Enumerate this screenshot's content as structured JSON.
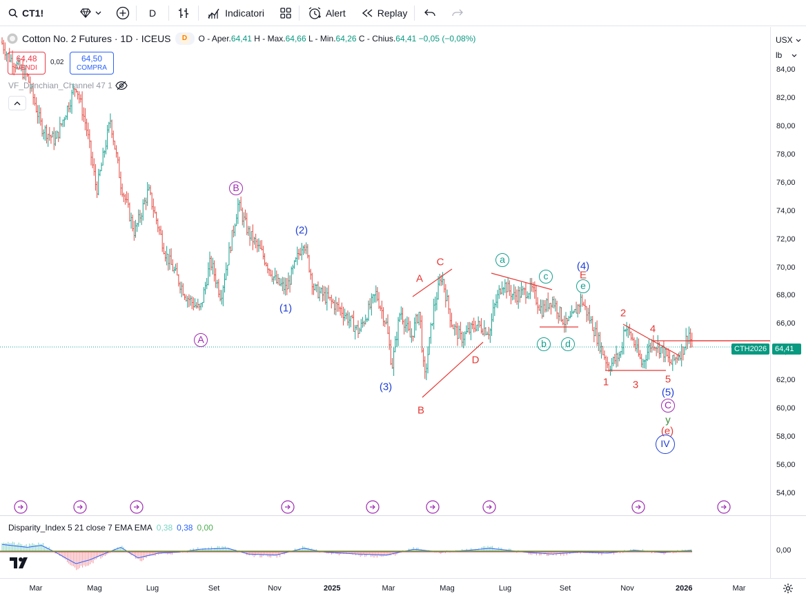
{
  "toolbar": {
    "symbol": "CT1!",
    "interval": "D",
    "indicators_label": "Indicatori",
    "alert_label": "Alert",
    "replay_label": "Replay"
  },
  "legend": {
    "title": "Cotton No. 2 Futures · 1D · ICEUS",
    "delay_badge": "D",
    "open_label": "O - Aper.",
    "open": "64,41",
    "high_label": "H - Max.",
    "high": "64,66",
    "low_label": "L - Min.",
    "low": "64,26",
    "close_label": "C - Chius.",
    "close": "64,41",
    "change": "−0,05 (−0,08%)",
    "up_color": "#089981",
    "down_color": "#f23645"
  },
  "trade": {
    "sell_price": "64,48",
    "sell_label": "VENDI",
    "spread": "0,02",
    "buy_price": "64,50",
    "buy_label": "COMPRA"
  },
  "indicator": {
    "name": "VF_Donchian_Channel 47 1"
  },
  "currency": {
    "unit": "USX",
    "weight": "lb"
  },
  "price_axis": {
    "ticks": [
      "84,00",
      "82,00",
      "80,00",
      "78,00",
      "76,00",
      "74,00",
      "72,00",
      "70,00",
      "68,00",
      "66,00",
      "64,00",
      "62,00",
      "60,00",
      "58,00",
      "56,00",
      "54,00"
    ],
    "last_price": "64,41",
    "contract_label": "CTH2026"
  },
  "oscillator": {
    "name": "Disparity_Index 5 21 close 7 EMA EMA",
    "value1": "0,38",
    "value2": "0,38",
    "value3": "0,00",
    "axis_tick": "0,00"
  },
  "time_axis": {
    "labels": [
      "Mar",
      "Mag",
      "Lug",
      "Set",
      "Nov",
      "2025",
      "Mar",
      "Mag",
      "Lug",
      "Set",
      "Nov",
      "2026",
      "Mar"
    ]
  },
  "waves": {
    "A": "A",
    "B": "B",
    "w1": "(1)",
    "w2": "(2)",
    "w3": "(3)",
    "w4": "(4)",
    "w5": "(5)",
    "tA": "A",
    "tB": "B",
    "tC": "C",
    "tD": "D",
    "tE": "E",
    "a": "a",
    "b": "b",
    "c": "c",
    "d": "d",
    "e": "e",
    "n1": "1",
    "n2": "2",
    "n3": "3",
    "n4": "4",
    "n5": "5",
    "C": "C",
    "y": "y",
    "e_paren": "(e)",
    "IV": "IV"
  },
  "colors": {
    "purple": "#9c27b0",
    "blue": "#1e3ed6",
    "red": "#e53935",
    "teal": "#139f8e",
    "green": "#3d8c3a"
  }
}
